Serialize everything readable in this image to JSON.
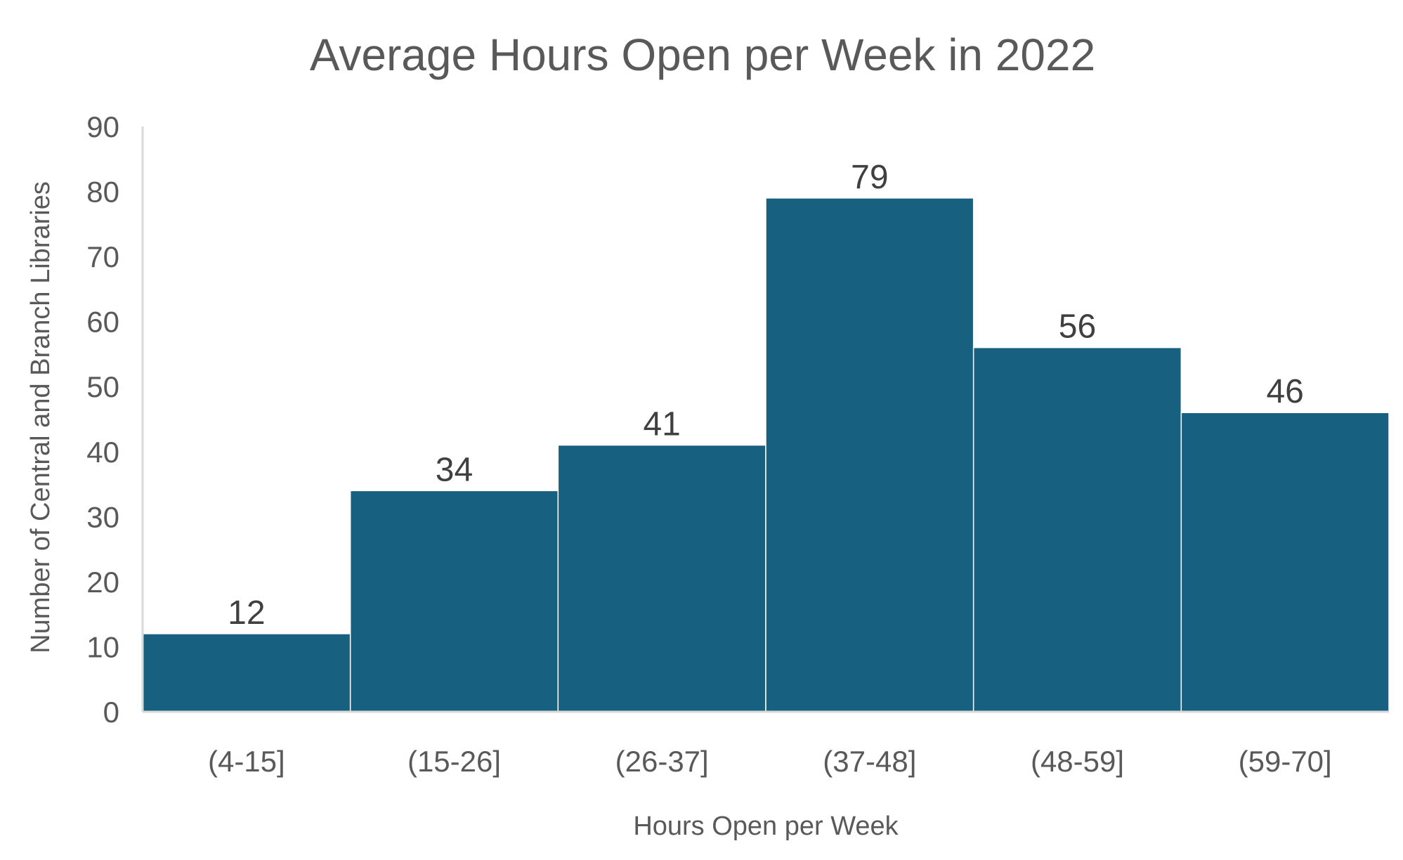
{
  "chart_data": {
    "type": "bar",
    "title": "Average Hours Open per Week in 2022",
    "xlabel": "Hours Open per Week",
    "ylabel": "Number of Central and Branch Libraries",
    "categories": [
      "(4-15]",
      "(15-26]",
      "(26-37]",
      "(37-48]",
      "(48-59]",
      "(59-70]"
    ],
    "values": [
      12,
      34,
      41,
      79,
      56,
      46
    ],
    "ylim": [
      0,
      90
    ],
    "yticks": [
      0,
      10,
      20,
      30,
      40,
      50,
      60,
      70,
      80,
      90
    ],
    "grid": false,
    "legend": "none",
    "bar_color": "#17607f",
    "data_labels": true
  }
}
